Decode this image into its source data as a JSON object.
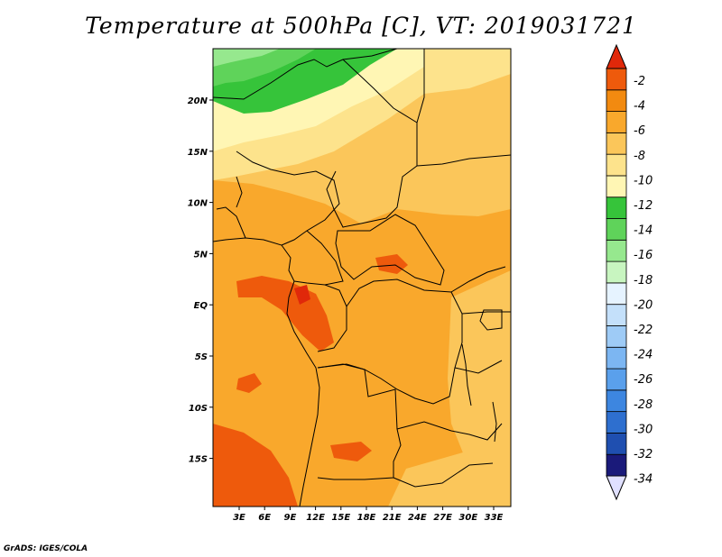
{
  "title": "Temperature at 500hPa [C], VT: 2019031721",
  "credit": "GrADS: IGES/COLA",
  "map": {
    "lon_labels": [
      "3E",
      "6E",
      "9E",
      "12E",
      "15E",
      "18E",
      "21E",
      "24E",
      "27E",
      "30E",
      "33E"
    ],
    "lat_labels": [
      "20N",
      "15N",
      "10N",
      "5N",
      "EQ",
      "5S",
      "10S",
      "15S"
    ]
  },
  "colorbar": {
    "labels": [
      "-2",
      "-4",
      "-6",
      "-8",
      "-10",
      "-12",
      "-14",
      "-16",
      "-18",
      "-20",
      "-22",
      "-24",
      "-26",
      "-28",
      "-30",
      "-32",
      "-34"
    ],
    "colors": [
      "#e0e0ff",
      "#1a1a7a",
      "#1f4fb0",
      "#2e6fcf",
      "#3d86e0",
      "#5aa0ec",
      "#7cb6f2",
      "#9ecbf6",
      "#c4e0fa",
      "#e6f3ff",
      "#c8f5c0",
      "#96e88e",
      "#5fd35a",
      "#36c43a",
      "#fff6b4",
      "#fde38c",
      "#fbc65a",
      "#f9a82c",
      "#f28a10",
      "#ee5a0c",
      "#e0280a"
    ]
  },
  "colors": {
    "green_dark": "#36c43a",
    "green_mid": "#5fd35a",
    "green_light": "#96e88e",
    "yellow_pale": "#fff6b4",
    "yellow": "#fde38c",
    "orange_light": "#fbc65a",
    "orange": "#f9a82c",
    "orange_dark": "#ee5a0c"
  }
}
